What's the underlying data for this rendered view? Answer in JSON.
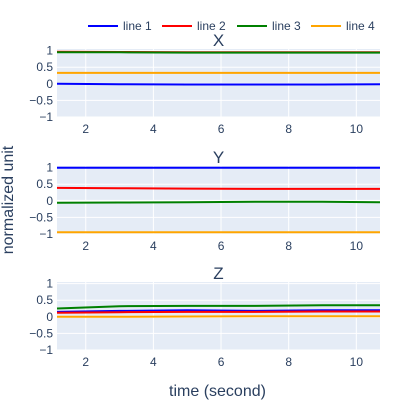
{
  "chart_data": {
    "type": "line",
    "legend_position": "top-right",
    "grid": true,
    "xlabel": "time (second)",
    "ylabel": "normalized unit",
    "series_styles": [
      {
        "name": "line 1",
        "color": "#0000ff"
      },
      {
        "name": "line 2",
        "color": "#ff0000"
      },
      {
        "name": "line 3",
        "color": "#008000"
      },
      {
        "name": "line 4",
        "color": "#ffa500"
      }
    ],
    "xlim": [
      1.15,
      10.7
    ],
    "x_ticks": [
      2,
      4,
      6,
      8,
      10
    ],
    "panels": [
      {
        "title": "X",
        "ylim": [
          -1,
          1.05
        ],
        "y_ticks": [
          1,
          0.5,
          0,
          -0.5,
          -1
        ],
        "series": [
          {
            "name": "line 1",
            "x": [
              1.15,
              3,
              5,
              7,
              9,
              10.7
            ],
            "y": [
              0.0,
              -0.01,
              -0.02,
              -0.02,
              -0.02,
              -0.01
            ]
          },
          {
            "name": "line 2",
            "x": [
              1.15,
              3,
              5,
              7,
              9,
              10.7
            ],
            "y": [
              0.97,
              0.96,
              0.95,
              0.95,
              0.95,
              0.95
            ]
          },
          {
            "name": "line 3",
            "x": [
              1.15,
              3,
              5,
              7,
              9,
              10.7
            ],
            "y": [
              0.95,
              0.95,
              0.94,
              0.94,
              0.94,
              0.94
            ]
          },
          {
            "name": "line 4",
            "x": [
              1.15,
              3,
              5,
              7,
              9,
              10.7
            ],
            "y": [
              0.33,
              0.33,
              0.33,
              0.33,
              0.33,
              0.33
            ]
          }
        ]
      },
      {
        "title": "Y",
        "ylim": [
          -1,
          1.05
        ],
        "y_ticks": [
          1,
          0.5,
          0,
          -0.5,
          -1
        ],
        "series": [
          {
            "name": "line 1",
            "x": [
              1.15,
              3,
              5,
              7,
              9,
              10.7
            ],
            "y": [
              1.0,
              1.0,
              1.0,
              1.0,
              1.0,
              1.0
            ]
          },
          {
            "name": "line 2",
            "x": [
              1.15,
              3,
              5,
              7,
              9,
              10.7
            ],
            "y": [
              0.39,
              0.38,
              0.37,
              0.36,
              0.36,
              0.36
            ]
          },
          {
            "name": "line 3",
            "x": [
              1.15,
              3,
              5,
              7,
              9,
              10.7
            ],
            "y": [
              -0.06,
              -0.05,
              -0.04,
              -0.03,
              -0.03,
              -0.04
            ]
          },
          {
            "name": "line 4",
            "x": [
              1.15,
              3,
              5,
              7,
              9,
              10.7
            ],
            "y": [
              -0.95,
              -0.95,
              -0.95,
              -0.95,
              -0.95,
              -0.95
            ]
          }
        ]
      },
      {
        "title": "Z",
        "ylim": [
          -1,
          1.05
        ],
        "y_ticks": [
          1,
          0.5,
          0,
          -0.5,
          -1
        ],
        "series": [
          {
            "name": "line 1",
            "x": [
              1.15,
              3,
              5,
              7,
              9,
              10.7
            ],
            "y": [
              0.15,
              0.18,
              0.2,
              0.18,
              0.2,
              0.2
            ]
          },
          {
            "name": "line 2",
            "x": [
              1.15,
              3,
              5,
              7,
              9,
              10.7
            ],
            "y": [
              0.12,
              0.14,
              0.15,
              0.15,
              0.16,
              0.16
            ]
          },
          {
            "name": "line 3",
            "x": [
              1.15,
              3,
              5,
              7,
              9,
              10.7
            ],
            "y": [
              0.25,
              0.32,
              0.33,
              0.33,
              0.35,
              0.35
            ]
          },
          {
            "name": "line 4",
            "x": [
              1.15,
              3,
              5,
              7,
              9,
              10.7
            ],
            "y": [
              0.0,
              0.0,
              0.01,
              0.02,
              0.02,
              0.02
            ]
          }
        ]
      }
    ]
  }
}
